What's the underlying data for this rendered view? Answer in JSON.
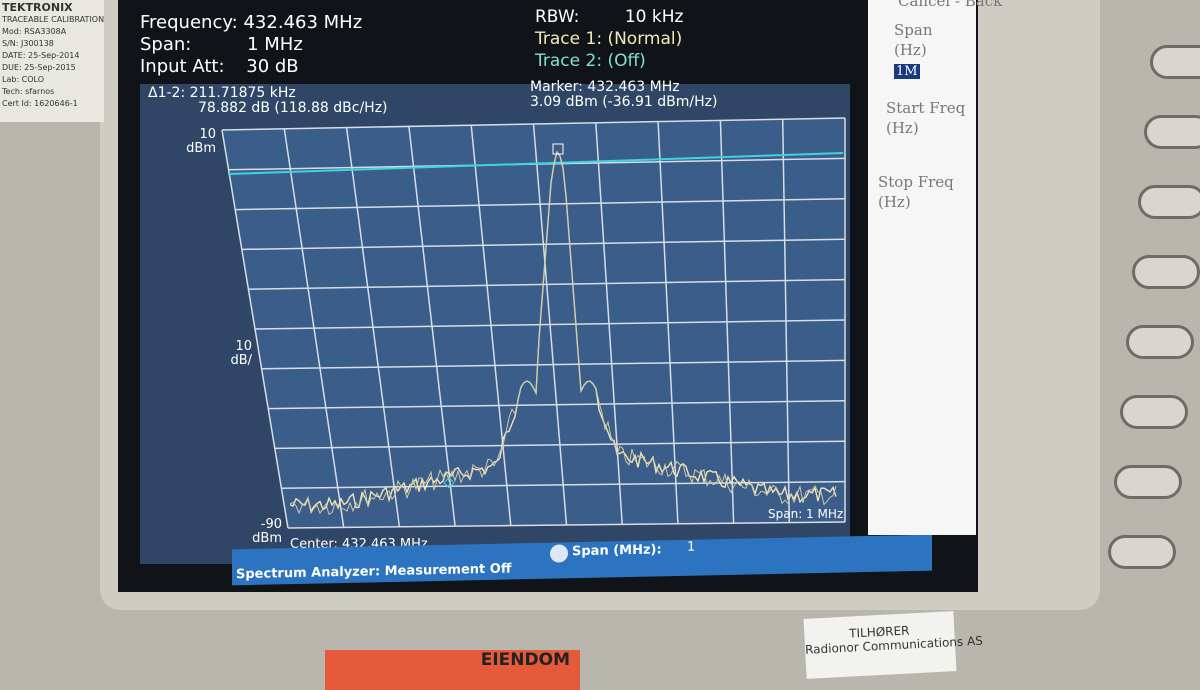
{
  "header": {
    "frequency_label": "Frequency:",
    "frequency_value": "432.463 MHz",
    "span_label": "Span:",
    "span_value": "1 MHz",
    "att_label": "Input Att:",
    "att_value": "30 dB",
    "rbw_label": "RBW:",
    "rbw_value": "10 kHz",
    "trace1_label": "Trace 1:",
    "trace1_value": "(Normal)",
    "trace2_label": "Trace 2:",
    "trace2_value": "(Off)"
  },
  "plot": {
    "delta_line1": "Δ1-2: 211.71875 kHz",
    "delta_line2": "78.882 dB (118.88 dBc/Hz)",
    "marker_line1": "Marker: 432.463 MHz",
    "marker_line2": "3.09 dBm (-36.91 dBm/Hz)",
    "top_value": "10",
    "top_unit": "dBm",
    "scale_value": "10",
    "scale_unit": "dB/",
    "bottom_value": "-90",
    "bottom_unit": "dBm",
    "center": "Center: 432.463 MHz",
    "span": "Span: 1 MHz"
  },
  "status": {
    "message": "Spectrum Analyzer: Measurement Off",
    "field_label": "Span (MHz):",
    "field_value": "1"
  },
  "menu": {
    "top": "Cancel - Back",
    "span_label": "Span",
    "span_unit": "(Hz)",
    "span_input": "1M",
    "start_label": "Start Freq",
    "start_unit": "(Hz)",
    "stop_label": "Stop Freq",
    "stop_unit": "(Hz)"
  },
  "sticker_left": [
    "TEKTRONIX",
    "TRACEABLE CALIBRATION",
    "Mod: RSA3308A",
    "S/N: J300138",
    "DATE: 25-Sep-2014",
    "DUE: 25-Sep-2015",
    "Lab: COLO",
    "Tech: sfarnos",
    "Cert Id: 1620646-1"
  ],
  "sticker_bottom": {
    "line1": "TILHØRER",
    "line2": "Radionor Communications AS"
  },
  "red_label": "EIENDOM"
}
